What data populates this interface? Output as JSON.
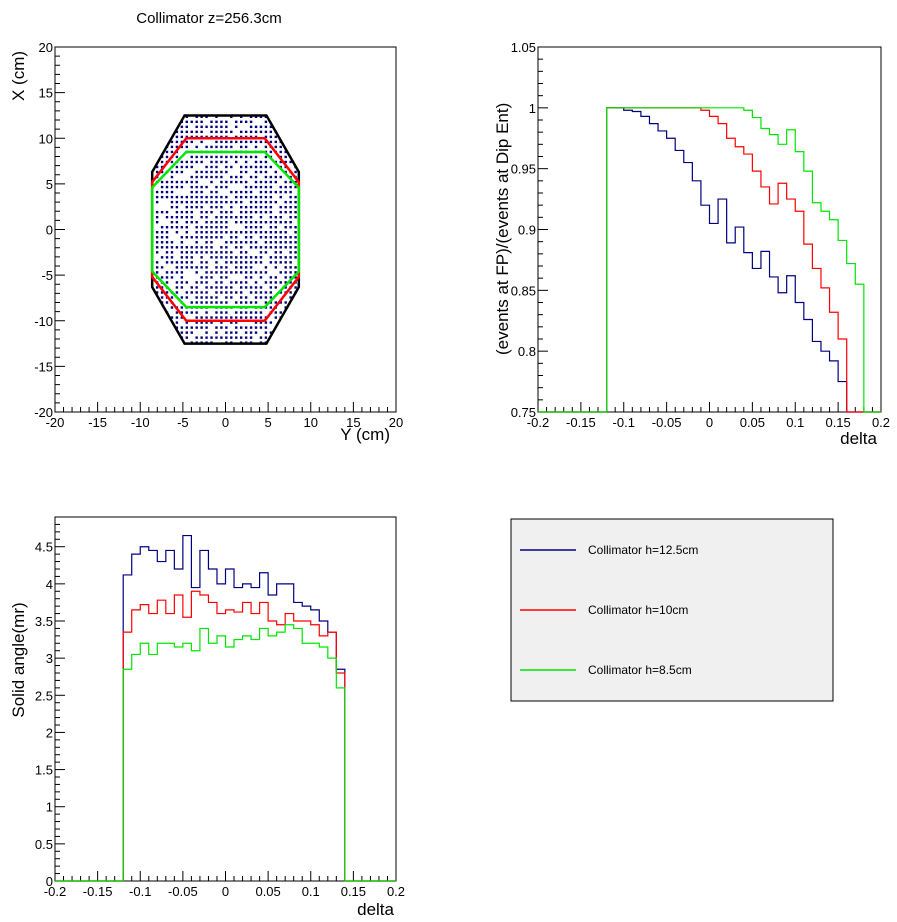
{
  "colors": {
    "h12": "#000080",
    "h10": "#ff0000",
    "h8": "#00e600",
    "outline": "#000000",
    "legend_bg": "#f0f0f0"
  },
  "chart_data": [
    {
      "id": "scatter",
      "type": "scatter",
      "title": "Collimator z=256.3cm",
      "xlabel": "Y (cm)",
      "ylabel": "X (cm)",
      "xlim": [
        -20,
        20
      ],
      "ylim": [
        -20,
        20
      ],
      "xticks": [
        "-20",
        "-15",
        "-10",
        "-5",
        "0",
        "5",
        "10",
        "15",
        "20"
      ],
      "yticks": [
        "-20",
        "-15",
        "-10",
        "-5",
        "0",
        "5",
        "10",
        "15",
        "20"
      ],
      "outlines": [
        {
          "name": "Collimator h=12.5cm",
          "color": "#000000",
          "points": [
            [
              -4.8,
              12.5
            ],
            [
              4.8,
              12.5
            ],
            [
              8.6,
              6.3
            ],
            [
              8.6,
              -6.3
            ],
            [
              4.8,
              -12.5
            ],
            [
              -4.8,
              -12.5
            ],
            [
              -8.6,
              -6.3
            ],
            [
              -8.6,
              6.3
            ]
          ]
        },
        {
          "name": "Collimator h=10cm",
          "color": "#ff0000",
          "points": [
            [
              -4.6,
              10
            ],
            [
              4.6,
              10
            ],
            [
              8.6,
              5.2
            ],
            [
              8.6,
              -5.2
            ],
            [
              4.6,
              -10
            ],
            [
              -4.6,
              -10
            ],
            [
              -8.6,
              -5.2
            ],
            [
              -8.6,
              5.2
            ]
          ]
        },
        {
          "name": "Collimator h=8.5cm",
          "color": "#00e600",
          "points": [
            [
              -4.6,
              8.5
            ],
            [
              4.6,
              8.5
            ],
            [
              8.6,
              4.6
            ],
            [
              8.6,
              -4.6
            ],
            [
              4.6,
              -8.5
            ],
            [
              -4.6,
              -8.5
            ],
            [
              -8.6,
              -4.6
            ],
            [
              -8.6,
              4.6
            ]
          ]
        }
      ]
    },
    {
      "id": "ratio",
      "type": "line",
      "title": "",
      "xlabel": "delta",
      "ylabel": "(events at FP)/(events at Dip Ent)",
      "xlim": [
        -0.2,
        0.2
      ],
      "ylim": [
        0.75,
        1.05
      ],
      "xticks": [
        "-0.2",
        "-0.15",
        "-0.1",
        "-0.05",
        "0",
        "0.05",
        "0.1",
        "0.15",
        "0.2"
      ],
      "yticks": [
        "0.75",
        "0.8",
        "0.85",
        "0.9",
        "0.95",
        "1",
        "1.05"
      ],
      "bins": {
        "start": -0.12,
        "width": 0.01
      },
      "series": [
        {
          "name": "Collimator h=12.5cm",
          "color": "#000080",
          "values": [
            1,
            1,
            0.998,
            0.997,
            0.993,
            0.987,
            0.981,
            0.975,
            0.965,
            0.955,
            0.94,
            0.92,
            0.905,
            0.925,
            0.889,
            0.902,
            0.881,
            0.868,
            0.882,
            0.861,
            0.848,
            0.862,
            0.84,
            0.826,
            0.808,
            0.8,
            0.792,
            0.775
          ]
        },
        {
          "name": "Collimator h=10cm",
          "color": "#ff0000",
          "values": [
            1,
            1,
            1,
            1,
            1,
            1,
            1,
            1,
            1,
            1,
            1,
            0.998,
            0.993,
            0.987,
            0.975,
            0.968,
            0.962,
            0.948,
            0.935,
            0.921,
            0.938,
            0.925,
            0.915,
            0.888,
            0.868,
            0.852,
            0.832,
            0.81
          ]
        },
        {
          "name": "Collimator h=8.5cm",
          "color": "#00e600",
          "values": [
            1,
            1,
            1,
            1,
            1,
            1,
            1,
            1,
            1,
            1,
            1,
            1,
            1,
            1,
            1,
            1,
            0.998,
            0.992,
            0.983,
            0.978,
            0.97,
            0.982,
            0.964,
            0.948,
            0.922,
            0.915,
            0.908,
            0.891,
            0.872,
            0.855
          ]
        }
      ]
    },
    {
      "id": "solid",
      "type": "line",
      "title": "",
      "xlabel": "delta",
      "ylabel": "Solid angle(mr)",
      "xlim": [
        -0.2,
        0.2
      ],
      "ylim": [
        0,
        4.9
      ],
      "xticks": [
        "-0.2",
        "-0.15",
        "-0.1",
        "-0.05",
        "0",
        "0.05",
        "0.1",
        "0.15",
        "0.2"
      ],
      "yticks": [
        "0",
        "0.5",
        "1",
        "1.5",
        "2",
        "2.5",
        "3",
        "3.5",
        "4",
        "4.5"
      ],
      "bins": {
        "start": -0.12,
        "width": 0.01
      },
      "series": [
        {
          "name": "Collimator h=12.5cm",
          "color": "#000080",
          "values": [
            4.12,
            4.4,
            4.5,
            4.45,
            4.3,
            4.45,
            4.2,
            4.65,
            3.95,
            4.45,
            4.2,
            4.0,
            4.2,
            3.95,
            4.0,
            3.95,
            4.15,
            3.85,
            4.0,
            4.0,
            3.75,
            3.7,
            3.65,
            3.5,
            3.35,
            2.85
          ]
        },
        {
          "name": "Collimator h=10cm",
          "color": "#ff0000",
          "values": [
            3.35,
            3.65,
            3.72,
            3.6,
            3.78,
            3.6,
            3.85,
            3.55,
            3.9,
            3.85,
            3.75,
            3.6,
            3.65,
            3.62,
            3.75,
            3.6,
            3.75,
            3.5,
            3.45,
            3.6,
            3.5,
            3.5,
            3.45,
            3.3,
            3.35,
            2.8
          ]
        },
        {
          "name": "Collimator h=8.5cm",
          "color": "#00e600",
          "values": [
            2.85,
            3.05,
            3.2,
            3.05,
            3.2,
            3.2,
            3.15,
            3.2,
            3.1,
            3.4,
            3.2,
            3.3,
            3.15,
            3.25,
            3.3,
            3.25,
            3.4,
            3.3,
            3.35,
            3.45,
            3.4,
            3.2,
            3.2,
            3.15,
            3.0,
            2.6
          ]
        }
      ]
    }
  ],
  "legend": {
    "entries": [
      {
        "label": "Collimator h=12.5cm",
        "color": "#000080"
      },
      {
        "label": "Collimator h=10cm",
        "color": "#ff0000"
      },
      {
        "label": "Collimator h=8.5cm",
        "color": "#00e600"
      }
    ]
  }
}
